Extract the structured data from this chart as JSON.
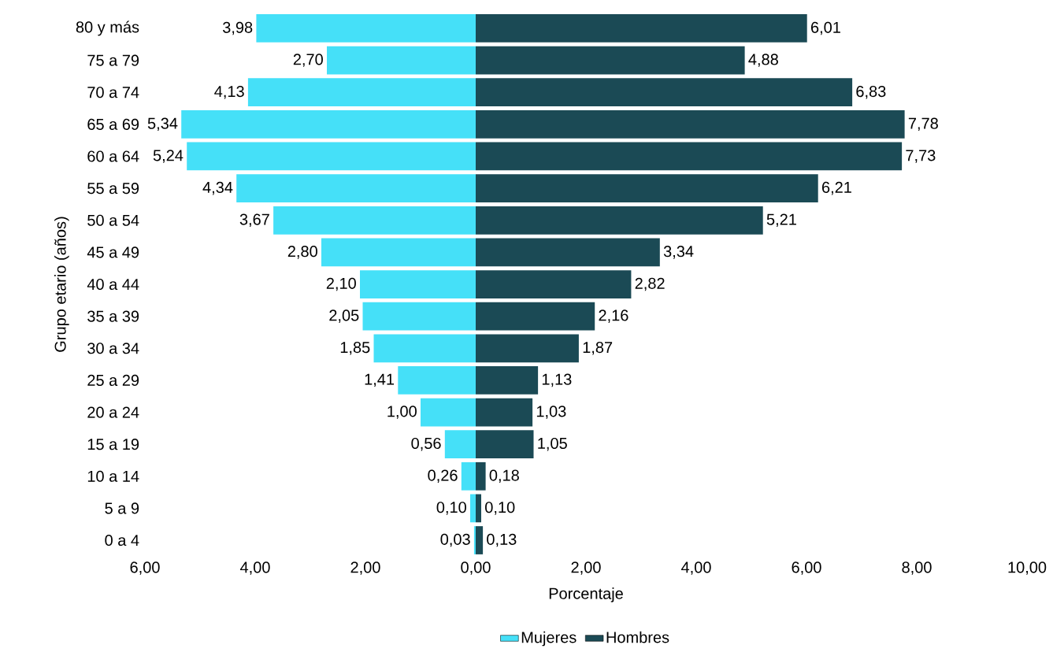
{
  "chart_data": {
    "type": "bar",
    "orientation": "horizontal",
    "xlabel": "Porcentaje",
    "ylabel": "Grupo etario (años)",
    "categories": [
      "80 y más",
      "75 a 79",
      "70 a 74",
      "65 a 69",
      "60 a 64",
      "55 a 59",
      "50 a 54",
      "45 a 49",
      "40 a 44",
      "35 a 39",
      "30 a 34",
      "25 a 29",
      "20 a 24",
      "15 a 19",
      "10 a 14",
      "5 a 9",
      "0 a 4"
    ],
    "series": [
      {
        "name": "Mujeres",
        "color": "#45e0f8",
        "values": [
          3.98,
          2.7,
          4.13,
          5.34,
          5.24,
          4.34,
          3.67,
          2.8,
          2.1,
          2.05,
          1.85,
          1.41,
          1.0,
          0.56,
          0.26,
          0.1,
          0.03
        ],
        "base": [
          -3.98,
          -2.7,
          -4.13,
          -5.34,
          -5.24,
          -4.34,
          -3.67,
          -2.8,
          -2.1,
          -2.05,
          -1.85,
          -1.41,
          -1.0,
          -0.56,
          -0.26,
          -0.1,
          -0.03
        ],
        "value_labels": [
          "3,98",
          "2,70",
          "4,13",
          "5,34",
          "5,24",
          "4,34",
          "3,67",
          "2,80",
          "2,10",
          "2,05",
          "1,85",
          "1,41",
          "1,00",
          "0,56",
          "0,26",
          "0,10",
          "0,03"
        ]
      },
      {
        "name": "Hombres",
        "color": "#1b4a55",
        "values": [
          6.01,
          4.88,
          6.83,
          7.78,
          7.73,
          6.21,
          5.21,
          3.34,
          2.82,
          2.16,
          1.87,
          1.13,
          1.03,
          1.05,
          0.18,
          0.1,
          0.13
        ],
        "value_labels": [
          "6,01",
          "4,88",
          "6,83",
          "7,78",
          "7,73",
          "6,21",
          "5,21",
          "3,34",
          "2,82",
          "2,16",
          "1,87",
          "1,13",
          "1,03",
          "1,05",
          "0,18",
          "0,10",
          "0,13"
        ]
      }
    ],
    "xlim": [
      -6,
      10
    ],
    "xticks": [
      {
        "value": -6,
        "label": "6,00"
      },
      {
        "value": -4,
        "label": "4,00"
      },
      {
        "value": -2,
        "label": "2,00"
      },
      {
        "value": 0,
        "label": "0,00"
      },
      {
        "value": 2,
        "label": "2,00"
      },
      {
        "value": 4,
        "label": "4,00"
      },
      {
        "value": 6,
        "label": "6,00"
      },
      {
        "value": 8,
        "label": "8,00"
      },
      {
        "value": 10,
        "label": "10,00"
      }
    ],
    "grid": false,
    "legend": "bottom"
  }
}
